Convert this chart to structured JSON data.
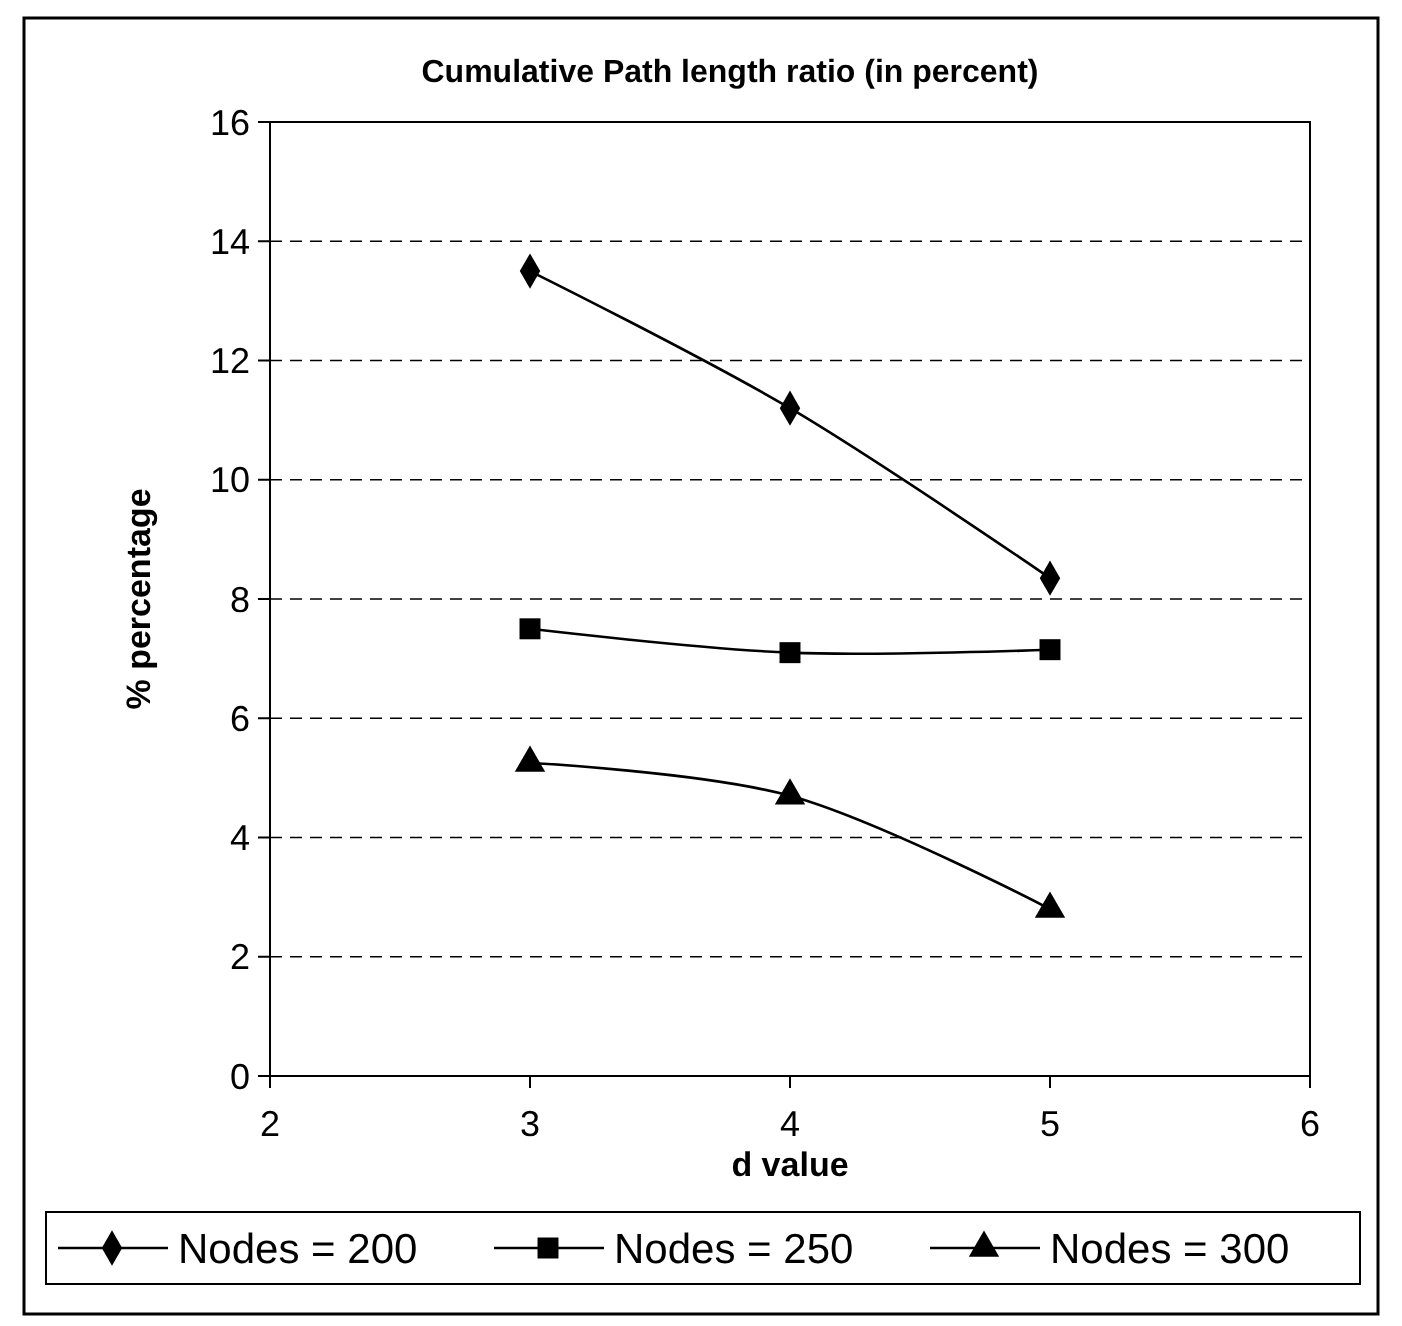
{
  "chart_data": {
    "type": "line",
    "title": "Cumulative Path length ratio (in percent)",
    "xlabel": "d value",
    "ylabel": "% percentage",
    "x": [
      3,
      4,
      5
    ],
    "xlim": [
      2,
      6
    ],
    "xticks": [
      2,
      3,
      4,
      5,
      6
    ],
    "ylim": [
      0,
      16
    ],
    "yticks": [
      0,
      2,
      4,
      6,
      8,
      10,
      12,
      14,
      16
    ],
    "grid": "y",
    "legend": "bottom",
    "line_style": "solid",
    "series": [
      {
        "name": "Nodes = 200",
        "color": "#000000",
        "marker": "diamond",
        "values": [
          13.5,
          11.2,
          8.35
        ]
      },
      {
        "name": "Nodes = 250",
        "color": "#000000",
        "marker": "square",
        "values": [
          7.5,
          7.1,
          7.15
        ]
      },
      {
        "name": "Nodes = 300",
        "color": "#000000",
        "marker": "triangle",
        "values": [
          5.25,
          4.7,
          2.8
        ]
      }
    ]
  }
}
